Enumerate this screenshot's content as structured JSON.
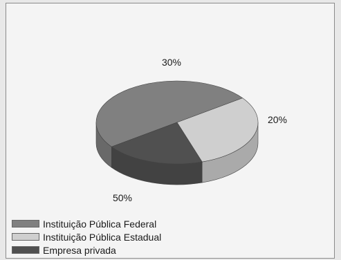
{
  "chart_data": {
    "type": "pie",
    "title": "",
    "categories": [
      "Instituição Pública Federal",
      "Instituição Pública Estadual",
      "Empresa privada"
    ],
    "values": [
      50,
      30,
      20
    ],
    "value_labels": [
      "50%",
      "30%",
      "20%"
    ],
    "colors": [
      "#808080",
      "#cfcfcf",
      "#505050"
    ],
    "style": "3d",
    "legend_position": "bottom-left"
  }
}
